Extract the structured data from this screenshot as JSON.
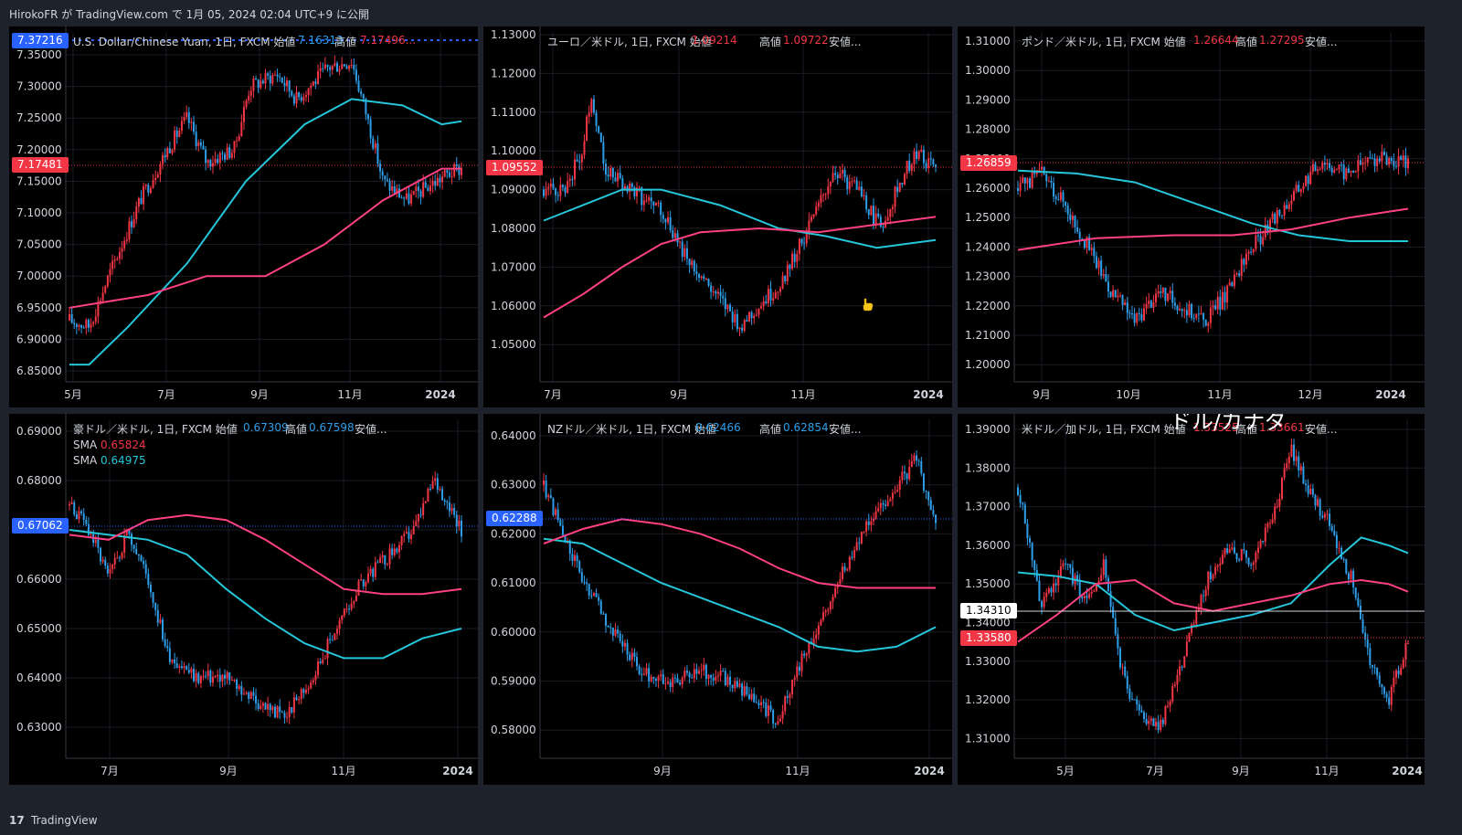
{
  "header": {
    "text": "HirokoFR が TradingView.com で 1月 05, 2024 02:04 UTC+9 に公開"
  },
  "footer": {
    "logo_glyph": "17",
    "brand": "TradingView"
  },
  "colors": {
    "up": "#f23645",
    "down": "#2e9ee8",
    "sma_fast": "#26c6da",
    "sma_slow": "#ff4081",
    "axis_text": "#d1d4dc",
    "background": "#000000"
  },
  "panels": [
    {
      "title_text": "U.S. Dollar/Chinese Yuan, 1日, FXCM 始値",
      "open_label": "始値",
      "open": "7.16313",
      "high_label": "高値",
      "high": "7.17496...",
      "current_price": "7.17481",
      "top_price": "7.37216",
      "y_labels": [
        "7.35000",
        "7.30000",
        "7.25000",
        "7.20000",
        "7.15000",
        "7.10000",
        "7.05000",
        "7.00000",
        "6.95000",
        "6.90000",
        "6.85000"
      ],
      "x_labels": [
        "5月",
        "7月",
        "9月",
        "11月",
        "2024"
      ]
    },
    {
      "title_text": "ユーロ／米ドル, 1日, FXCM 始値",
      "open_label": "始値",
      "open": "1.09214",
      "high_label": "高値",
      "high": "1.09722",
      "extra": "安値...",
      "current_price": "1.09552",
      "y_labels": [
        "1.13000",
        "1.12000",
        "1.11000",
        "1.10000",
        "1.09000",
        "1.08000",
        "1.07000",
        "1.06000",
        "1.05000"
      ],
      "x_labels": [
        "7月",
        "9月",
        "11月",
        "2024"
      ]
    },
    {
      "title_text": "ポンド／米ドル, 1日, FXCM 始値",
      "open_label": "始値",
      "open": "1.26644",
      "high_label": "高値",
      "high": "1.27295",
      "extra": "安値...",
      "current_price": "1.26859",
      "y_labels": [
        "1.31000",
        "1.30000",
        "1.29000",
        "1.28000",
        "1.27000",
        "1.26000",
        "1.25000",
        "1.24000",
        "1.23000",
        "1.22000",
        "1.21000",
        "1.20000"
      ],
      "x_labels": [
        "9月",
        "10月",
        "11月",
        "12月",
        "2024"
      ]
    },
    {
      "title_text": "豪ドル／米ドル, 1日, FXCM 始値",
      "open_label": "始値",
      "open": "0.67309",
      "high_label": "高値",
      "high": "0.67598",
      "extra": "安値...",
      "sma1_label": "SMA",
      "sma1_value": "0.65824",
      "sma2_label": "SMA",
      "sma2_value": "0.64975",
      "current_price": "0.67062",
      "y_labels": [
        "0.69000",
        "0.68000",
        "0.67000",
        "0.66000",
        "0.65000",
        "0.64000",
        "0.63000"
      ],
      "x_labels": [
        "7月",
        "9月",
        "11月",
        "2024"
      ]
    },
    {
      "title_text": "NZドル／米ドル, 1日, FXCM 始値",
      "open_label": "始値",
      "open": "0.62466",
      "high_label": "高値",
      "high": "0.62854",
      "extra": "安値...",
      "current_price": "0.62288",
      "y_labels": [
        "0.64000",
        "0.63000",
        "0.62000",
        "0.61000",
        "0.60000",
        "0.59000",
        "0.58000"
      ],
      "x_labels": [
        "9月",
        "11月",
        "2024"
      ]
    },
    {
      "title_text": "米ドル／加ドル, 1日, FXCM 始値",
      "open_label": "始値",
      "open": "1.33525",
      "high_label": "高値",
      "high": "1.33661",
      "extra": "安値...",
      "overlay_text": "ドル/カナダ",
      "hline_price": "1.34310",
      "current_price": "1.33580",
      "y_labels": [
        "1.39000",
        "1.38000",
        "1.37000",
        "1.36000",
        "1.35000",
        "1.34000",
        "1.33000",
        "1.32000",
        "1.31000"
      ],
      "x_labels": [
        "5月",
        "7月",
        "9月",
        "11月",
        "2024"
      ]
    }
  ]
}
